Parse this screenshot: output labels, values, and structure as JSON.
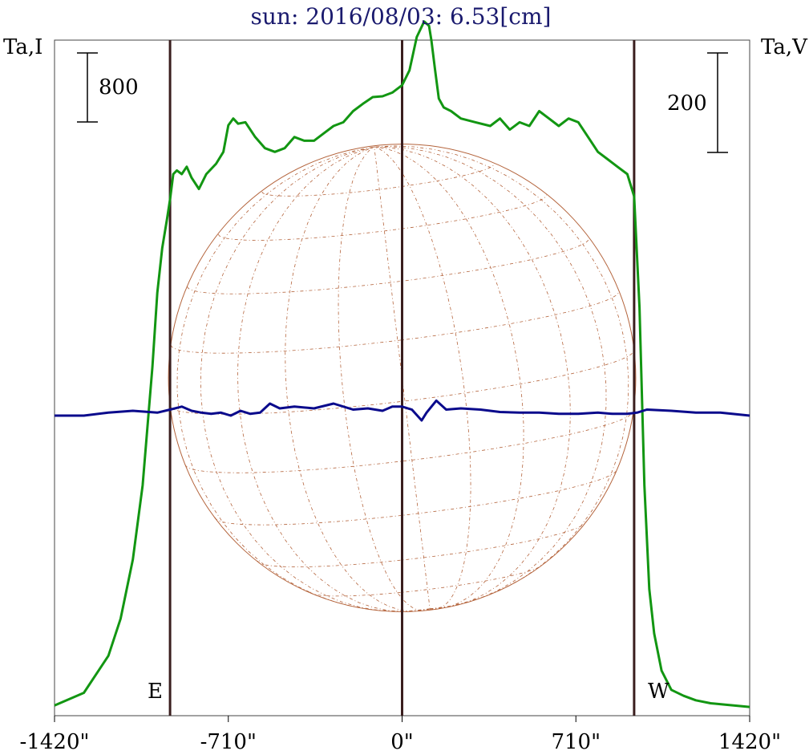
{
  "chart_data": {
    "type": "line",
    "title": "sun: 2016/08/03: 6.53[cm]",
    "left_axis_label": "Ta,I",
    "right_axis_label": "Ta,V",
    "left_scale_bar_label": "800",
    "right_scale_bar_label": "200",
    "limb_labels": {
      "east": "E",
      "west": "W"
    },
    "x_tick_labels": [
      "-1420\"",
      "-710\"",
      "0\"",
      "710\"",
      "1420\""
    ],
    "x_ticks": [
      -1420,
      -710,
      0,
      710,
      1420
    ],
    "xlim": [
      -1420,
      1420
    ],
    "vertical_lines_x": [
      -948,
      0,
      948
    ],
    "ylim_I": [
      0,
      4450
    ],
    "ylim_V": [
      -500,
      612
    ],
    "colors": {
      "I": "#129612",
      "V": "#0a0a8c",
      "limb_lines": "#3a1e1e",
      "disk": "#b4643c",
      "title": "#1a1a6e"
    },
    "series": [
      {
        "stokes": "I",
        "x": [
          -1420,
          -1300,
          -1200,
          -1150,
          -1100,
          -1060,
          -1020,
          -1000,
          -980,
          -960,
          -948,
          -935,
          -920,
          -900,
          -880,
          -860,
          -830,
          -800,
          -760,
          -730,
          -710,
          -690,
          -670,
          -640,
          -600,
          -560,
          -520,
          -480,
          -440,
          -400,
          -360,
          -320,
          -280,
          -240,
          -200,
          -160,
          -120,
          -80,
          -40,
          0,
          30,
          60,
          90,
          110,
          120,
          135,
          150,
          170,
          200,
          240,
          300,
          360,
          400,
          440,
          480,
          520,
          560,
          600,
          640,
          680,
          720,
          760,
          800,
          840,
          880,
          920,
          948,
          970,
          990,
          1010,
          1030,
          1060,
          1100,
          1150,
          1200,
          1260,
          1320,
          1420
        ],
        "values": [
          15,
          100,
          350,
          600,
          1000,
          1500,
          2300,
          2800,
          3100,
          3300,
          3430,
          3600,
          3625,
          3600,
          3650,
          3575,
          3500,
          3600,
          3670,
          3750,
          3930,
          3975,
          3940,
          3950,
          3850,
          3775,
          3750,
          3775,
          3850,
          3825,
          3825,
          3875,
          3925,
          3950,
          4025,
          4075,
          4120,
          4125,
          4150,
          4200,
          4300,
          4525,
          4630,
          4600,
          4500,
          4300,
          4110,
          4050,
          4025,
          3975,
          3950,
          3925,
          3975,
          3900,
          3950,
          3925,
          4025,
          3975,
          3925,
          3975,
          3950,
          3850,
          3750,
          3700,
          3650,
          3600,
          3450,
          2700,
          1500,
          800,
          500,
          250,
          120,
          80,
          50,
          30,
          20,
          5
        ]
      },
      {
        "stokes": "V",
        "x": [
          -1420,
          -1300,
          -1200,
          -1100,
          -1000,
          -948,
          -900,
          -860,
          -820,
          -780,
          -740,
          -700,
          -660,
          -620,
          -580,
          -540,
          -500,
          -440,
          -360,
          -280,
          -200,
          -140,
          -80,
          -40,
          0,
          40,
          80,
          100,
          140,
          180,
          240,
          320,
          400,
          480,
          560,
          640,
          720,
          800,
          860,
          920,
          960,
          1000,
          1100,
          1200,
          1300,
          1420
        ],
        "values": [
          0,
          0,
          5,
          8,
          5,
          10,
          15,
          8,
          5,
          3,
          5,
          0,
          8,
          3,
          5,
          20,
          12,
          15,
          12,
          20,
          10,
          12,
          8,
          15,
          15,
          10,
          -8,
          5,
          25,
          10,
          12,
          10,
          6,
          5,
          5,
          3,
          3,
          5,
          3,
          3,
          5,
          10,
          8,
          5,
          5,
          0
        ]
      }
    ]
  }
}
